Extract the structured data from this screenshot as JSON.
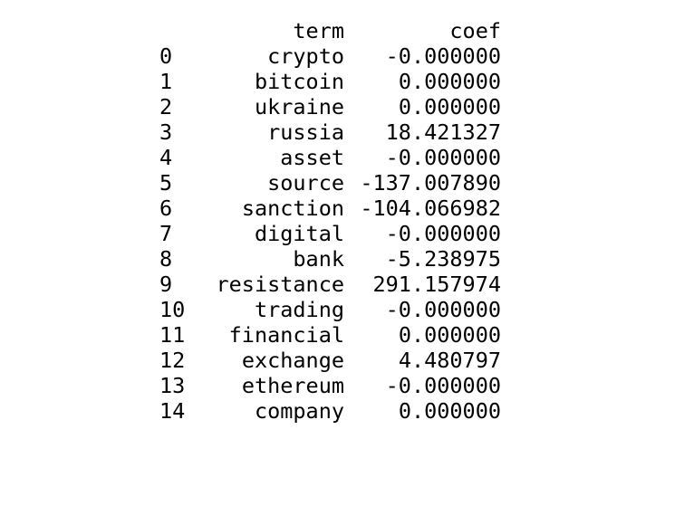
{
  "table": {
    "columns": {
      "term": "term",
      "coef": "coef"
    },
    "rows": [
      {
        "index": "0",
        "term": "crypto",
        "coef": "-0.000000"
      },
      {
        "index": "1",
        "term": "bitcoin",
        "coef": "0.000000"
      },
      {
        "index": "2",
        "term": "ukraine",
        "coef": "0.000000"
      },
      {
        "index": "3",
        "term": "russia",
        "coef": "18.421327"
      },
      {
        "index": "4",
        "term": "asset",
        "coef": "-0.000000"
      },
      {
        "index": "5",
        "term": "source",
        "coef": "-137.007890"
      },
      {
        "index": "6",
        "term": "sanction",
        "coef": "-104.066982"
      },
      {
        "index": "7",
        "term": "digital",
        "coef": "-0.000000"
      },
      {
        "index": "8",
        "term": "bank",
        "coef": "-5.238975"
      },
      {
        "index": "9",
        "term": "resistance",
        "coef": "291.157974"
      },
      {
        "index": "10",
        "term": "trading",
        "coef": "-0.000000"
      },
      {
        "index": "11",
        "term": "financial",
        "coef": "0.000000"
      },
      {
        "index": "12",
        "term": "exchange",
        "coef": "4.480797"
      },
      {
        "index": "13",
        "term": "ethereum",
        "coef": "-0.000000"
      },
      {
        "index": "14",
        "term": "company",
        "coef": "0.000000"
      }
    ]
  }
}
